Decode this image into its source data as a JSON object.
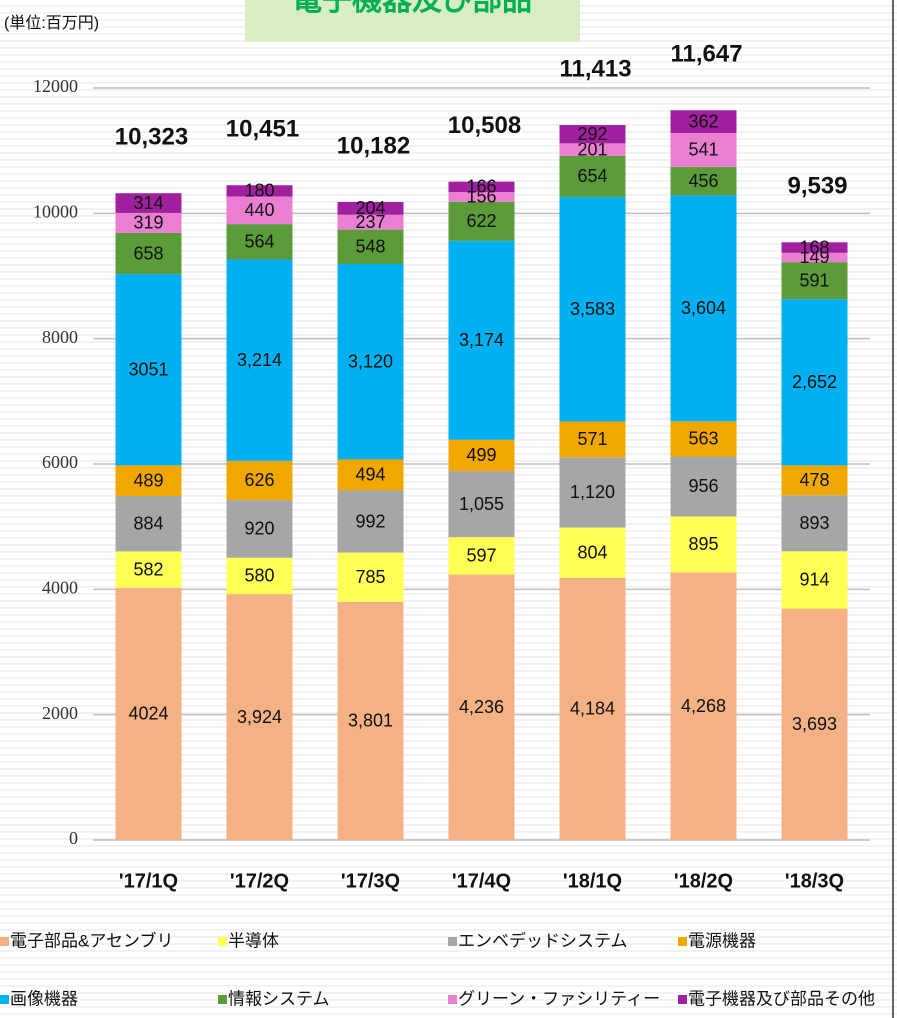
{
  "chart_data": {
    "type": "stacked_bar",
    "title": "電子機器及び部品",
    "unit_label": "(単位:百万円)",
    "categories": [
      "'17/1Q",
      "'17/2Q",
      "'17/3Q",
      "'17/4Q",
      "'18/1Q",
      "'18/2Q",
      "'18/3Q"
    ],
    "series": [
      {
        "name": "電子部品&アセンブリ",
        "color": "#f4b183",
        "values": [
          4024,
          3924,
          3801,
          4236,
          4184,
          4268,
          3693
        ],
        "value_labels": [
          "4024",
          "3,924",
          "3,801",
          "4,236",
          "4,184",
          "4,268",
          "3,693"
        ]
      },
      {
        "name": "半導体",
        "color": "#ffff55",
        "values": [
          582,
          580,
          785,
          597,
          804,
          895,
          914
        ]
      },
      {
        "name": "エンベデッドシステム",
        "color": "#a6a6a6",
        "values": [
          884,
          920,
          992,
          1055,
          1120,
          956,
          893
        ],
        "value_labels": [
          "884",
          "920",
          "992",
          "1,055",
          "1,120",
          "956",
          "893"
        ]
      },
      {
        "name": "電源機器",
        "color": "#f0a800",
        "values": [
          489,
          626,
          494,
          499,
          571,
          563,
          478
        ]
      },
      {
        "name": "画像機器",
        "color": "#00b0f0",
        "values": [
          3051,
          3214,
          3120,
          3174,
          3583,
          3604,
          2652
        ],
        "value_labels": [
          "3051",
          "3,214",
          "3,120",
          "3,174",
          "3,583",
          "3,604",
          "2,652"
        ]
      },
      {
        "name": "情報システム",
        "color": "#5b9b3a",
        "values": [
          658,
          564,
          548,
          622,
          654,
          456,
          591
        ]
      },
      {
        "name": "グリーン・ファシリティー",
        "color": "#ea7fd2",
        "values": [
          319,
          440,
          237,
          156,
          201,
          541,
          149
        ]
      },
      {
        "name": "電子機器及び部品その他",
        "color": "#a0209f",
        "values": [
          314,
          180,
          204,
          166,
          292,
          362,
          168
        ]
      }
    ],
    "totals": {
      "values": [
        10323,
        10451,
        10182,
        10508,
        11413,
        11647,
        9539
      ],
      "value_labels": [
        "10,323",
        "10,451",
        "10,182",
        "10,508",
        "11,413",
        "11,647",
        "9,539"
      ]
    },
    "ylim": [
      0,
      12000
    ],
    "yticks": [
      0,
      2000,
      4000,
      6000,
      8000,
      10000,
      12000
    ],
    "grid": true
  }
}
